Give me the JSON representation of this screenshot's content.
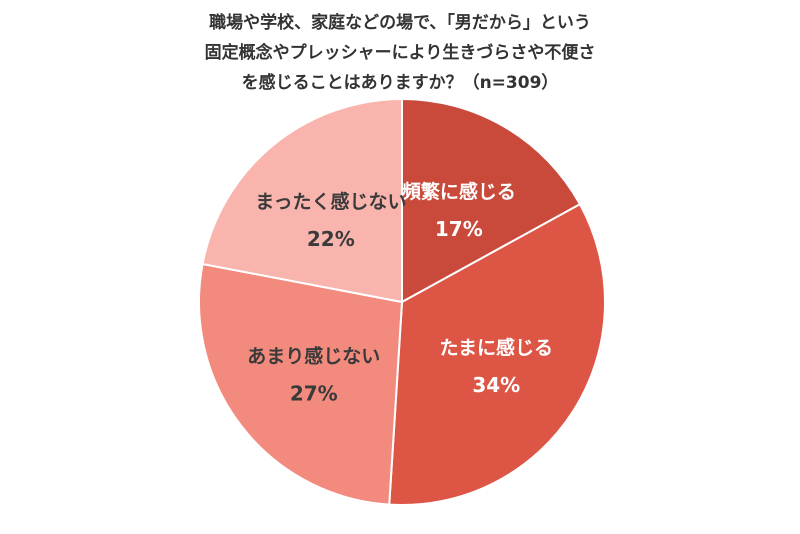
{
  "chart_data": {
    "type": "pie",
    "title_lines": [
      "職場や学校、家庭などの場で、「男だから」という",
      "固定概念やプレッシャーにより生きづらさや不便さ",
      "を感じることはありますか？（n=309）"
    ],
    "slices": [
      {
        "label": "頻繁に感じる",
        "value": 17,
        "display": "17%",
        "color": "#c9493b",
        "text_color": "light"
      },
      {
        "label": "たまに感じる",
        "value": 34,
        "display": "34%",
        "color": "#dd5545",
        "text_color": "light"
      },
      {
        "label": "あまり感じない",
        "value": 27,
        "display": "27%",
        "color": "#f28a7e",
        "text_color": "dark"
      },
      {
        "label": "まったく感じない",
        "value": 22,
        "display": "22%",
        "color": "#f9b5ad",
        "text_color": "dark"
      }
    ],
    "start": "12 o'clock",
    "direction": "clockwise"
  }
}
